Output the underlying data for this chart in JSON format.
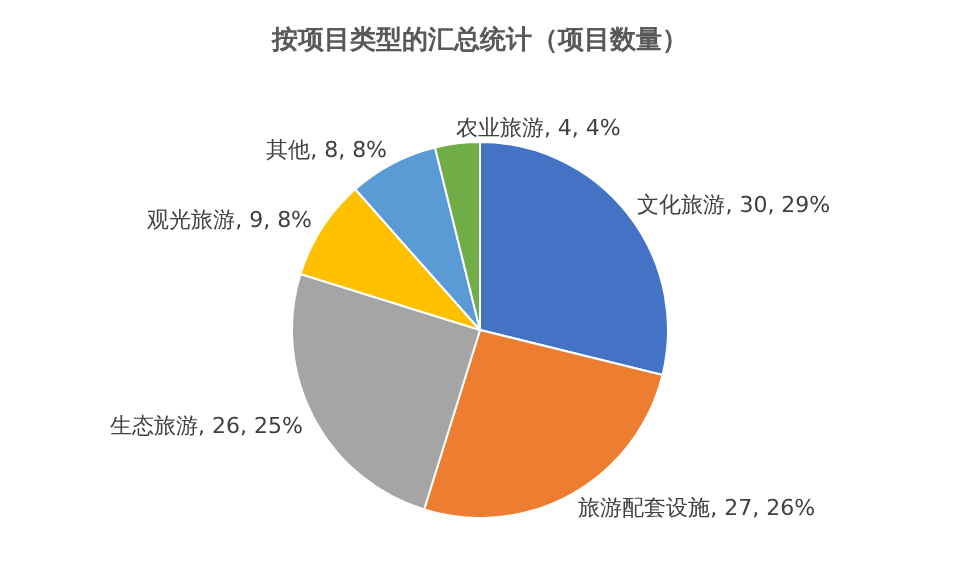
{
  "chart_data": {
    "type": "pie",
    "title": "按项目类型的汇总统计（项目数量）",
    "categories": [
      "文化旅游",
      "旅游配套设施",
      "生态旅游",
      "观光旅游",
      "其他",
      "农业旅游"
    ],
    "values": [
      30,
      27,
      26,
      9,
      8,
      4
    ],
    "value_labels": [
      "30, 29%",
      "27, 26%",
      "26, 25%",
      "9, 8%",
      "8, 8%",
      "4, 4%"
    ],
    "colors": [
      "#4472c4",
      "#ed7d31",
      "#a5a5a5",
      "#ffc000",
      "#5b9bd5",
      "#70ad47"
    ],
    "legend": false
  }
}
